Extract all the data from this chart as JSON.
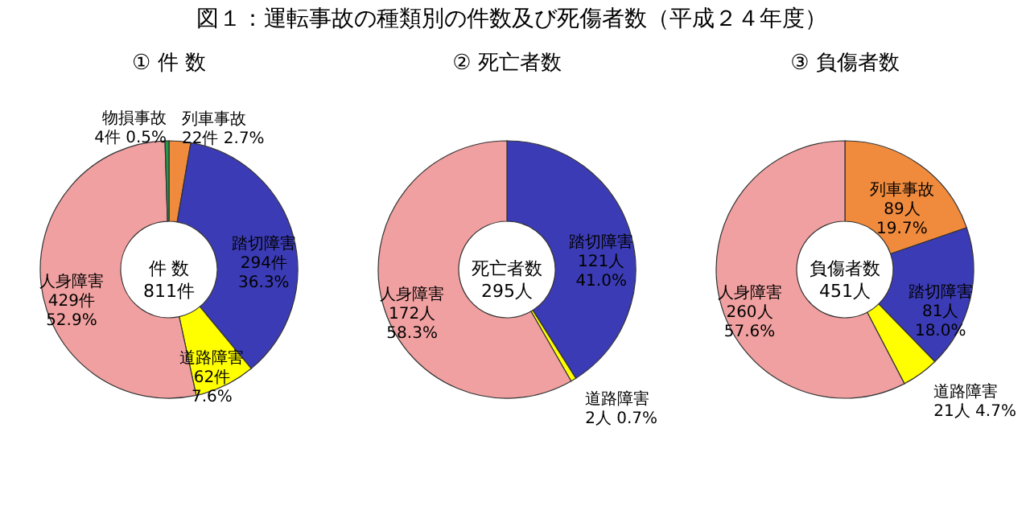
{
  "chart_data": [
    {
      "type": "other",
      "title": "図１：運転事故の種類別の件数及び死傷者数（平成２４年度）"
    },
    {
      "type": "donut",
      "title": "① 件 数",
      "categories": [
        "列車事故",
        "踏切障害",
        "道路障害",
        "人身障害",
        "物損事故"
      ],
      "values": [
        22,
        294,
        62,
        429,
        4
      ],
      "colors": [
        "#f08a3c",
        "#3b3bb5",
        "#ffff00",
        "#f0a0a0",
        "#1f9a4a"
      ],
      "value_labels": [
        "22件 2.7%",
        "294件 36.3%",
        "62件 7.6%",
        "429件 52.9%",
        "4件 0.5%"
      ],
      "annotations": [
        "件 数",
        "811件"
      ]
    },
    {
      "type": "donut",
      "title": "② 死亡者数",
      "categories": [
        "踏切障害",
        "道路障害",
        "人身障害"
      ],
      "values": [
        121,
        2,
        172
      ],
      "colors": [
        "#3b3bb5",
        "#ffff00",
        "#f0a0a0"
      ],
      "value_labels": [
        "121人 41.0%",
        "2人 0.7%",
        "172人 58.3%"
      ],
      "annotations": [
        "死亡者数",
        "295人"
      ]
    },
    {
      "type": "donut",
      "title": "③ 負傷者数",
      "categories": [
        "列車事故",
        "踏切障害",
        "道路障害",
        "人身障害"
      ],
      "values": [
        89,
        81,
        21,
        260
      ],
      "colors": [
        "#f08a3c",
        "#3b3bb5",
        "#ffff00",
        "#f0a0a0"
      ],
      "value_labels": [
        "89人 19.7%",
        "81人 18.0%",
        "21人 4.7%",
        "260人 57.6%"
      ],
      "annotations": [
        "負傷者数",
        "451人"
      ]
    }
  ]
}
